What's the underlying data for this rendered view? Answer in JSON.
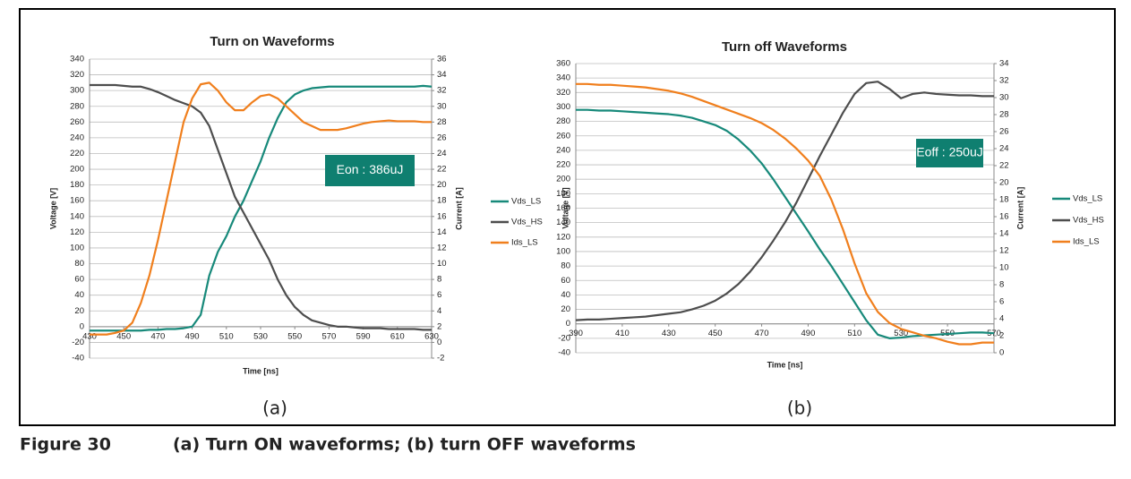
{
  "chart_data": [
    {
      "type": "line",
      "title": "Turn on Waveforms",
      "panel_label": "(a)",
      "x_label": "Time [ns]",
      "y_label": "Voltage [V]",
      "y2_label": "Current [A]",
      "annotation": "Eon : 386uJ",
      "legend": "right",
      "grid": true,
      "xlim": [
        430,
        630
      ],
      "xticks": [
        430,
        450,
        470,
        490,
        510,
        530,
        550,
        570,
        590,
        610,
        630
      ],
      "ylim": [
        -40,
        340
      ],
      "yticks": [
        -40,
        -20,
        0,
        20,
        40,
        60,
        80,
        100,
        120,
        140,
        160,
        180,
        200,
        220,
        240,
        260,
        280,
        300,
        320,
        340
      ],
      "y2lim": [
        -2,
        36
      ],
      "y2ticks": [
        -2,
        0,
        2,
        4,
        6,
        8,
        10,
        12,
        14,
        16,
        18,
        20,
        22,
        24,
        26,
        28,
        30,
        32,
        34,
        36
      ],
      "x": [
        430,
        435,
        440,
        445,
        450,
        455,
        460,
        465,
        470,
        475,
        480,
        485,
        490,
        495,
        500,
        505,
        510,
        515,
        520,
        525,
        530,
        535,
        540,
        545,
        550,
        555,
        560,
        565,
        570,
        575,
        580,
        585,
        590,
        595,
        600,
        605,
        610,
        615,
        620,
        625,
        630
      ],
      "series": [
        {
          "name": "Vds_LS",
          "color": "#17897a",
          "values": [
            -5,
            -5,
            -5,
            -5,
            -5,
            -5,
            -5,
            -4,
            -4,
            -3,
            -3,
            -2,
            0,
            15,
            65,
            95,
            115,
            140,
            160,
            185,
            210,
            240,
            265,
            285,
            295,
            300,
            303,
            304,
            305,
            305,
            305,
            305,
            305,
            305,
            305,
            305,
            305,
            305,
            305,
            306,
            305
          ]
        },
        {
          "name": "Vds_HS",
          "color": "#4d4d4d",
          "values": [
            307,
            307,
            307,
            307,
            306,
            305,
            305,
            302,
            298,
            293,
            288,
            284,
            280,
            272,
            255,
            225,
            195,
            165,
            145,
            125,
            105,
            85,
            60,
            40,
            25,
            15,
            8,
            5,
            2,
            0,
            0,
            -1,
            -2,
            -2,
            -2,
            -3,
            -3,
            -3,
            -3,
            -4,
            -4
          ]
        },
        {
          "name": "Ids_LS",
          "color": "#f07f1d",
          "axis": "y2",
          "values": [
            1,
            1,
            1,
            1.2,
            1.5,
            2.5,
            5,
            8.5,
            13,
            18,
            23,
            28,
            31,
            32.8,
            33,
            32,
            30.5,
            29.5,
            29.5,
            30.5,
            31.3,
            31.5,
            31,
            30,
            29,
            28,
            27.5,
            27,
            27,
            27,
            27.2,
            27.5,
            27.8,
            28,
            28.1,
            28.2,
            28.1,
            28.1,
            28.1,
            28,
            28
          ]
        }
      ]
    },
    {
      "type": "line",
      "title": "Turn off Waveforms",
      "panel_label": "(b)",
      "x_label": "Time [ns]",
      "y_label": "Voltage [V]",
      "y2_label": "Current [A]",
      "annotation": "Eoff : 250uJ",
      "legend": "right",
      "grid": true,
      "xlim": [
        390,
        570
      ],
      "xticks": [
        390,
        410,
        430,
        450,
        470,
        490,
        510,
        530,
        550,
        570
      ],
      "ylim": [
        -40,
        360
      ],
      "yticks": [
        -40,
        -20,
        0,
        20,
        40,
        60,
        80,
        100,
        120,
        140,
        160,
        180,
        200,
        220,
        240,
        260,
        280,
        300,
        320,
        340,
        360
      ],
      "y2lim": [
        0,
        34
      ],
      "y2ticks": [
        0,
        2,
        4,
        6,
        8,
        10,
        12,
        14,
        16,
        18,
        20,
        22,
        24,
        26,
        28,
        30,
        32,
        34
      ],
      "x": [
        390,
        395,
        400,
        405,
        410,
        415,
        420,
        425,
        430,
        435,
        440,
        445,
        450,
        455,
        460,
        465,
        470,
        475,
        480,
        485,
        490,
        495,
        500,
        505,
        510,
        515,
        520,
        525,
        530,
        535,
        540,
        545,
        550,
        555,
        560,
        565,
        570
      ],
      "series": [
        {
          "name": "Vds_LS",
          "color": "#17897a",
          "values": [
            296,
            296,
            295,
            295,
            294,
            293,
            292,
            291,
            290,
            288,
            285,
            280,
            275,
            267,
            255,
            240,
            222,
            200,
            176,
            152,
            128,
            103,
            80,
            55,
            30,
            5,
            -15,
            -20,
            -19,
            -17,
            -16,
            -15,
            -14,
            -13,
            -12,
            -12,
            -13
          ]
        },
        {
          "name": "Vds_HS",
          "color": "#4d4d4d",
          "values": [
            5,
            6,
            6,
            7,
            8,
            9,
            10,
            12,
            14,
            16,
            20,
            25,
            32,
            42,
            55,
            72,
            92,
            115,
            140,
            168,
            200,
            232,
            262,
            292,
            318,
            333,
            335,
            325,
            312,
            318,
            320,
            318,
            317,
            316,
            316,
            315,
            315
          ]
        },
        {
          "name": "Ids_LS",
          "color": "#f07f1d",
          "axis": "y2",
          "values": [
            31.6,
            31.6,
            31.5,
            31.5,
            31.4,
            31.3,
            31.2,
            31,
            30.8,
            30.5,
            30.1,
            29.6,
            29.1,
            28.6,
            28.1,
            27.6,
            27,
            26.2,
            25.2,
            24,
            22.6,
            20.8,
            18,
            14.5,
            10.5,
            7,
            4.8,
            3.5,
            2.8,
            2.4,
            2,
            1.7,
            1.3,
            1,
            1,
            1.2,
            1.2
          ]
        }
      ]
    }
  ],
  "figure": {
    "label": "Figure 30",
    "caption": "(a) Turn ON waveforms; (b) turn OFF waveforms"
  }
}
